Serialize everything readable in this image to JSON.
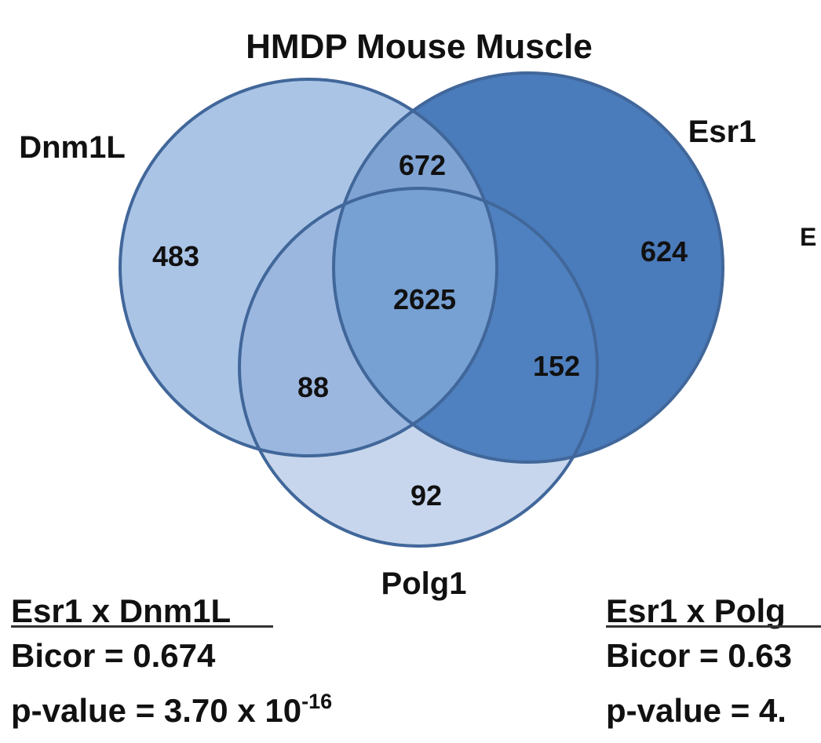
{
  "title": "HMDP Mouse Muscle",
  "venn": {
    "sets": [
      {
        "name": "Dnm1L",
        "color": "#aac4e6"
      },
      {
        "name": "Esr1",
        "color": "#4a7bbb"
      },
      {
        "name": "Polg1",
        "color": "#c7d6ec"
      }
    ],
    "outline_color": "#41679a",
    "regions": {
      "dnm1l_only": "483",
      "esr1_only": "624",
      "polg1_only": "92",
      "dnm1l_esr1": "672",
      "dnm1l_polg1": "88",
      "esr1_polg1": "152",
      "all_three": "2625"
    }
  },
  "clipped_right_label": "E",
  "stats": [
    {
      "heading": "Esr1 x Dnm1L",
      "bicor": "Bicor = 0.674",
      "pvalue_prefix": "p-value = 3.70 x 10",
      "pvalue_exponent": "-16"
    },
    {
      "heading": "Esr1 x Polg",
      "bicor": "Bicor = 0.63",
      "pvalue_prefix": "p-value = 4."
    }
  ]
}
